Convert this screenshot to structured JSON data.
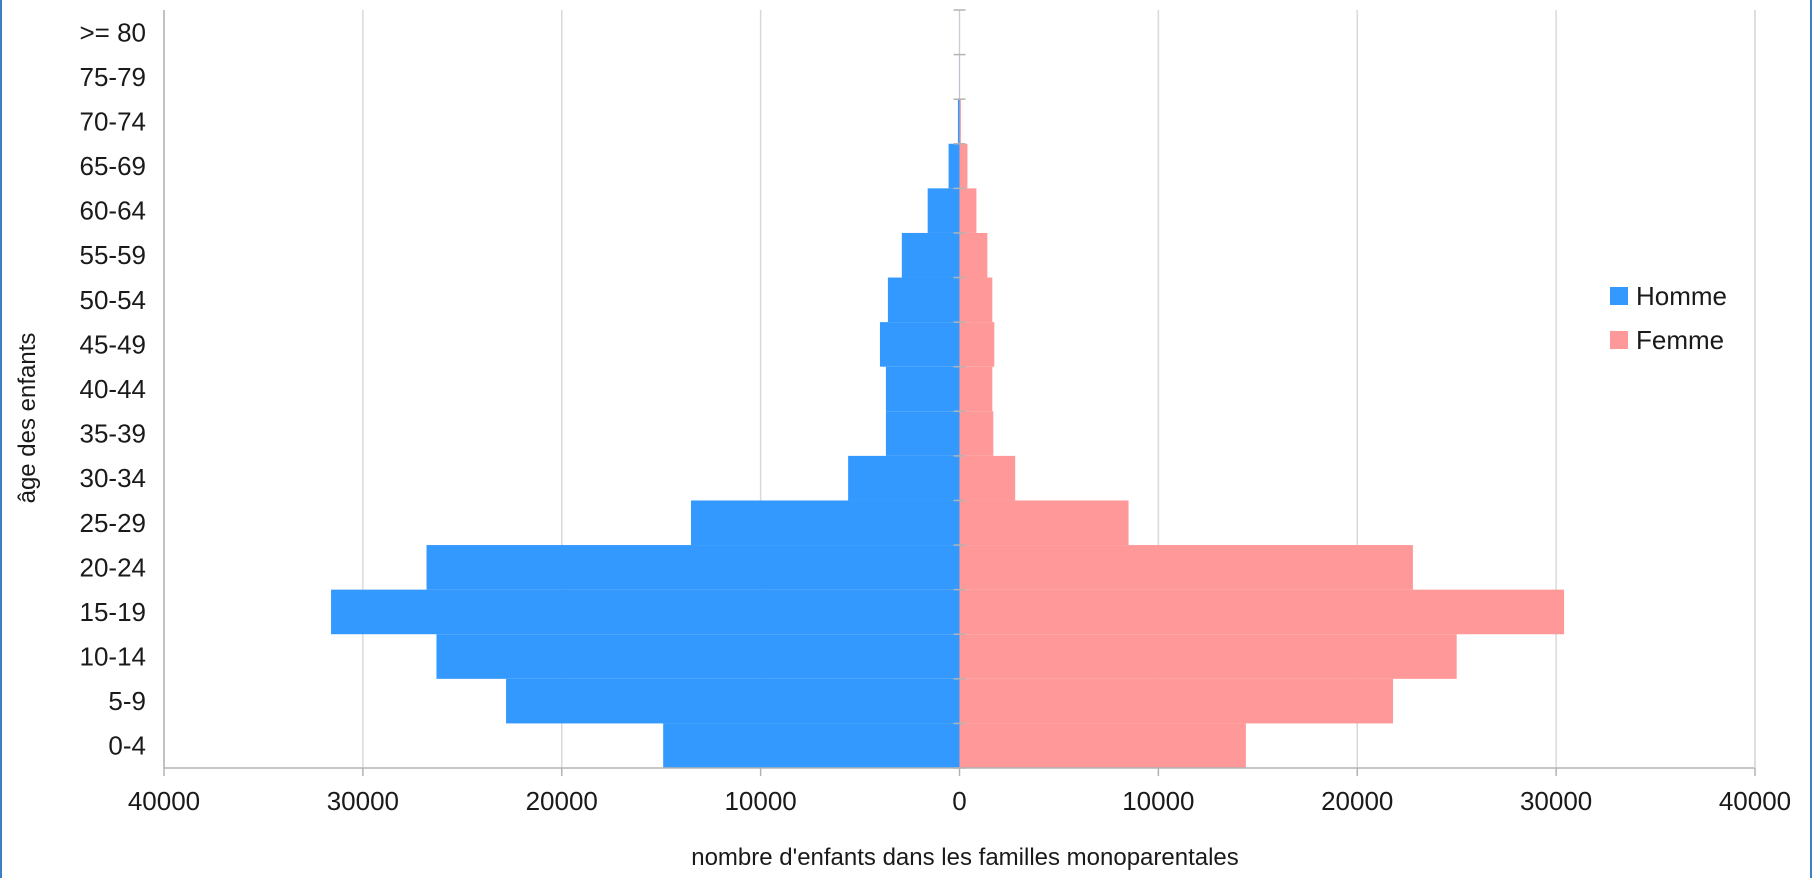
{
  "chart_data": {
    "type": "bar",
    "orientation": "horizontal",
    "title": "",
    "xlabel": "nombre d'enfants dans les familles monoparentales",
    "ylabel": "âge des enfants",
    "xlim": [
      -40000,
      40000
    ],
    "xticks": [
      -40000,
      -30000,
      -20000,
      -10000,
      0,
      10000,
      20000,
      30000,
      40000
    ],
    "xtick_labels": [
      "40000",
      "30000",
      "20000",
      "10000",
      "0",
      "10000",
      "20000",
      "30000",
      "40000"
    ],
    "grid": true,
    "legend_position": "right",
    "categories": [
      "0-4",
      "5-9",
      "10-14",
      "15-19",
      "20-24",
      "25-29",
      "30-34",
      "35-39",
      "40-44",
      "45-49",
      "50-54",
      "55-59",
      "60-64",
      "65-69",
      "70-74",
      "75-79",
      ">= 80"
    ],
    "series": [
      {
        "name": "Homme",
        "color": "#3399ff",
        "values": [
          14900,
          22800,
          26300,
          31600,
          26800,
          13500,
          5600,
          3700,
          3700,
          4000,
          3600,
          2900,
          1600,
          550,
          80,
          10,
          5
        ]
      },
      {
        "name": "Femme",
        "color": "#ff9999",
        "values": [
          14400,
          21800,
          25000,
          30400,
          22800,
          8500,
          2800,
          1700,
          1650,
          1750,
          1650,
          1400,
          850,
          400,
          70,
          10,
          5
        ]
      }
    ]
  }
}
